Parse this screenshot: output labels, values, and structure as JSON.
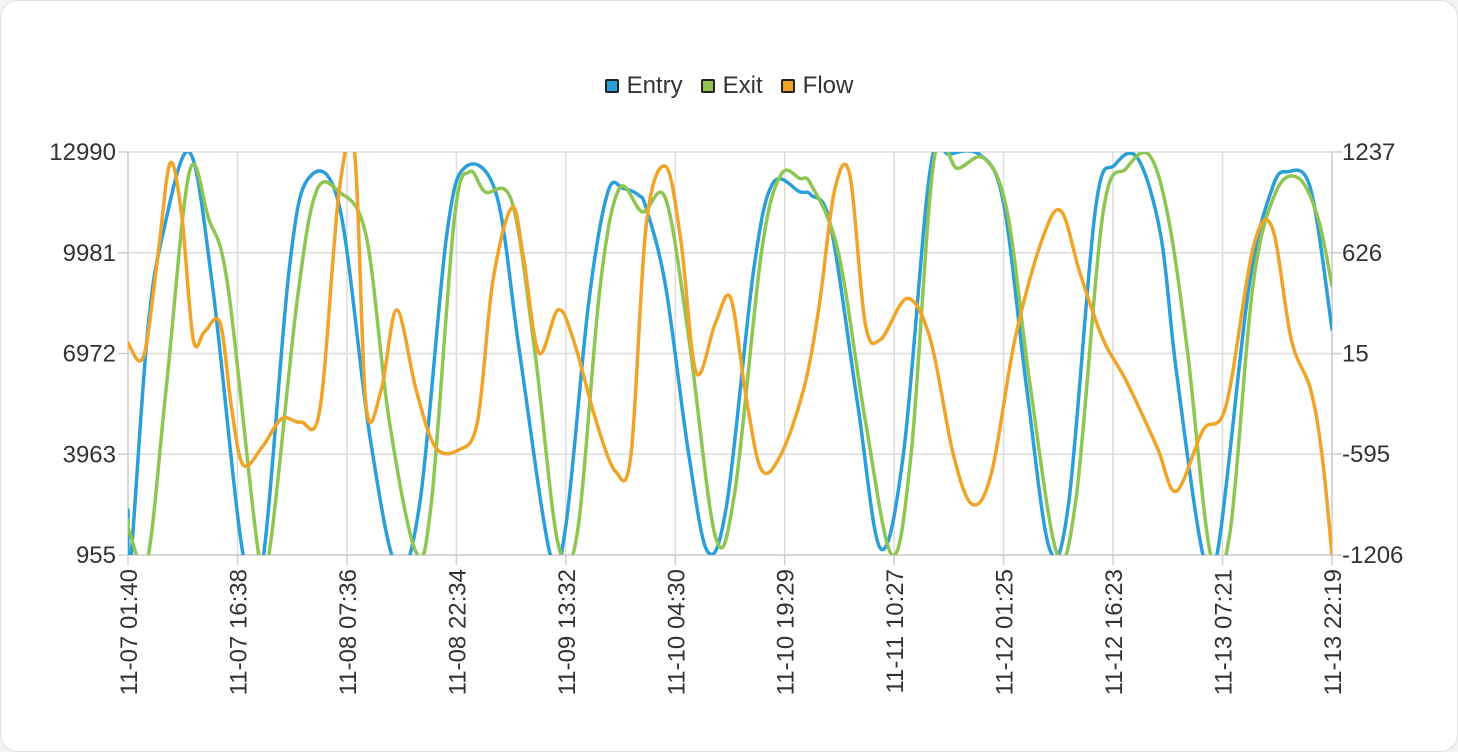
{
  "legend": {
    "items": [
      {
        "label": "Entry",
        "color": "#2a9fd8"
      },
      {
        "label": "Exit",
        "color": "#8fc652"
      },
      {
        "label": "Flow",
        "color": "#f0a428"
      }
    ]
  },
  "chart_data": {
    "type": "line",
    "x_tick_labels": [
      "11-07 01:40",
      "11-07 16:38",
      "11-08 07:36",
      "11-08 22:34",
      "11-09 13:32",
      "11-10 04:30",
      "11-10 19:29",
      "11-11 10:27",
      "11-12 01:25",
      "11-12 16:23",
      "11-13 07:21",
      "11-13 22:19"
    ],
    "x_range": [
      "11-07 01:40",
      "11-13 22:19"
    ],
    "left_axis": {
      "min": 955,
      "max": 12990,
      "ticks": [
        955,
        3963,
        6972,
        9981,
        12990
      ]
    },
    "right_axis": {
      "min": -1206,
      "max": 1237,
      "ticks": [
        -1206,
        -595,
        15,
        626,
        1237
      ]
    },
    "grid": true,
    "legend_position": "top-center",
    "series": [
      {
        "name": "Entry",
        "axis": "left",
        "color": "#2a9fd8",
        "points": [
          [
            0.0,
            2300
          ],
          [
            0.05,
            500
          ],
          [
            0.5,
            7500
          ],
          [
            0.9,
            10500
          ],
          [
            1.6,
            12990
          ],
          [
            2.2,
            9000
          ],
          [
            3.0,
            955
          ],
          [
            3.5,
            700
          ],
          [
            4.2,
            9500
          ],
          [
            4.7,
            12200
          ],
          [
            5.5,
            11400
          ],
          [
            6.3,
            4500
          ],
          [
            7.0,
            600
          ],
          [
            7.6,
            2500
          ],
          [
            8.3,
            10500
          ],
          [
            8.8,
            12550
          ],
          [
            9.6,
            11700
          ],
          [
            10.2,
            7000
          ],
          [
            11.0,
            955
          ],
          [
            11.4,
            1800
          ],
          [
            12.0,
            8500
          ],
          [
            12.5,
            11800
          ],
          [
            12.9,
            11900
          ],
          [
            13.3,
            11700
          ],
          [
            13.5,
            11300
          ],
          [
            14.0,
            9000
          ],
          [
            14.6,
            4000
          ],
          [
            15.1,
            1050
          ],
          [
            15.6,
            2500
          ],
          [
            16.3,
            9500
          ],
          [
            16.8,
            12060
          ],
          [
            17.5,
            11800
          ],
          [
            17.8,
            11700
          ],
          [
            18.3,
            10800
          ],
          [
            19.0,
            5500
          ],
          [
            19.6,
            1150
          ],
          [
            20.2,
            4000
          ],
          [
            20.9,
            12500
          ],
          [
            21.4,
            12920
          ],
          [
            22.2,
            12900
          ],
          [
            22.8,
            11500
          ],
          [
            23.4,
            6000
          ],
          [
            24.0,
            1150
          ],
          [
            24.5,
            2500
          ],
          [
            25.2,
            11300
          ],
          [
            25.7,
            12600
          ],
          [
            26.3,
            12800
          ],
          [
            26.9,
            10500
          ],
          [
            27.3,
            6500
          ],
          [
            28.0,
            955
          ],
          [
            28.4,
            1200
          ],
          [
            29.2,
            9000
          ],
          [
            29.8,
            11900
          ],
          [
            30.2,
            12400
          ],
          [
            30.8,
            11900
          ],
          [
            31.36,
            7700
          ]
        ]
      },
      {
        "name": "Exit",
        "axis": "left",
        "color": "#8fc652",
        "points": [
          [
            0.0,
            2000
          ],
          [
            0.05,
            1600
          ],
          [
            0.5,
            800
          ],
          [
            1.0,
            6000
          ],
          [
            1.6,
            12400
          ],
          [
            2.1,
            11000
          ],
          [
            2.6,
            9000
          ],
          [
            3.4,
            1000
          ],
          [
            3.7,
            1200
          ],
          [
            4.4,
            8500
          ],
          [
            4.9,
            11800
          ],
          [
            5.5,
            11800
          ],
          [
            6.2,
            10500
          ],
          [
            6.8,
            5000
          ],
          [
            7.5,
            1050
          ],
          [
            7.9,
            2500
          ],
          [
            8.5,
            11000
          ],
          [
            8.9,
            12400
          ],
          [
            9.3,
            11800
          ],
          [
            10.0,
            11500
          ],
          [
            10.6,
            7000
          ],
          [
            11.2,
            1300
          ],
          [
            11.7,
            1600
          ],
          [
            12.3,
            9000
          ],
          [
            12.8,
            11900
          ],
          [
            13.4,
            11200
          ],
          [
            14.0,
            11600
          ],
          [
            14.6,
            7500
          ],
          [
            15.3,
            1500
          ],
          [
            15.8,
            2800
          ],
          [
            16.5,
            10000
          ],
          [
            17.0,
            12300
          ],
          [
            17.5,
            12200
          ],
          [
            17.8,
            12000
          ],
          [
            18.5,
            10000
          ],
          [
            19.2,
            5000
          ],
          [
            19.9,
            955
          ],
          [
            20.4,
            4000
          ],
          [
            21.0,
            12800
          ],
          [
            21.6,
            12500
          ],
          [
            22.3,
            12800
          ],
          [
            22.9,
            11200
          ],
          [
            23.5,
            6000
          ],
          [
            24.2,
            1000
          ],
          [
            24.7,
            2700
          ],
          [
            25.4,
            11200
          ],
          [
            26.0,
            12500
          ],
          [
            26.6,
            12900
          ],
          [
            27.1,
            11000
          ],
          [
            27.6,
            7000
          ],
          [
            28.2,
            955
          ],
          [
            28.7,
            1600
          ],
          [
            29.3,
            9000
          ],
          [
            29.9,
            11800
          ],
          [
            30.5,
            12200
          ],
          [
            31.0,
            11000
          ],
          [
            31.36,
            9000
          ]
        ]
      },
      {
        "name": "Flow",
        "axis": "right",
        "color": "#f0a428",
        "points": [
          [
            0.0,
            80
          ],
          [
            0.3,
            -30
          ],
          [
            0.5,
            100
          ],
          [
            0.8,
            650
          ],
          [
            1.1,
            1170
          ],
          [
            1.4,
            850
          ],
          [
            1.7,
            100
          ],
          [
            2.0,
            150
          ],
          [
            2.4,
            200
          ],
          [
            2.7,
            -320
          ],
          [
            3.0,
            -660
          ],
          [
            3.5,
            -550
          ],
          [
            4.0,
            -380
          ],
          [
            4.5,
            -400
          ],
          [
            5.0,
            -320
          ],
          [
            5.5,
            1000
          ],
          [
            5.9,
            1237
          ],
          [
            6.2,
            -300
          ],
          [
            6.6,
            -200
          ],
          [
            7.0,
            280
          ],
          [
            7.5,
            -200
          ],
          [
            8.0,
            -550
          ],
          [
            8.6,
            -570
          ],
          [
            9.1,
            -400
          ],
          [
            9.5,
            450
          ],
          [
            10.0,
            900
          ],
          [
            10.3,
            600
          ],
          [
            10.7,
            20
          ],
          [
            11.2,
            280
          ],
          [
            11.6,
            100
          ],
          [
            12.2,
            -400
          ],
          [
            12.7,
            -700
          ],
          [
            13.1,
            -600
          ],
          [
            13.5,
            800
          ],
          [
            14.0,
            1150
          ],
          [
            14.4,
            700
          ],
          [
            14.8,
            -100
          ],
          [
            15.3,
            200
          ],
          [
            15.7,
            350
          ],
          [
            16.1,
            -250
          ],
          [
            16.5,
            -690
          ],
          [
            17.0,
            -600
          ],
          [
            17.6,
            -200
          ],
          [
            18.0,
            300
          ],
          [
            18.4,
            1000
          ],
          [
            18.8,
            1100
          ],
          [
            19.2,
            200
          ],
          [
            19.6,
            100
          ],
          [
            20.3,
            350
          ],
          [
            20.9,
            100
          ],
          [
            21.5,
            -600
          ],
          [
            22.0,
            -900
          ],
          [
            22.5,
            -700
          ],
          [
            23.1,
            100
          ],
          [
            23.8,
            700
          ],
          [
            24.3,
            880
          ],
          [
            24.8,
            500
          ],
          [
            25.4,
            100
          ],
          [
            26.0,
            -150
          ],
          [
            26.8,
            -550
          ],
          [
            27.3,
            -820
          ],
          [
            28.0,
            -450
          ],
          [
            28.6,
            -300
          ],
          [
            29.3,
            650
          ],
          [
            29.8,
            780
          ],
          [
            30.3,
            100
          ],
          [
            30.8,
            -200
          ],
          [
            31.1,
            -600
          ],
          [
            31.36,
            -1206
          ]
        ]
      }
    ]
  }
}
